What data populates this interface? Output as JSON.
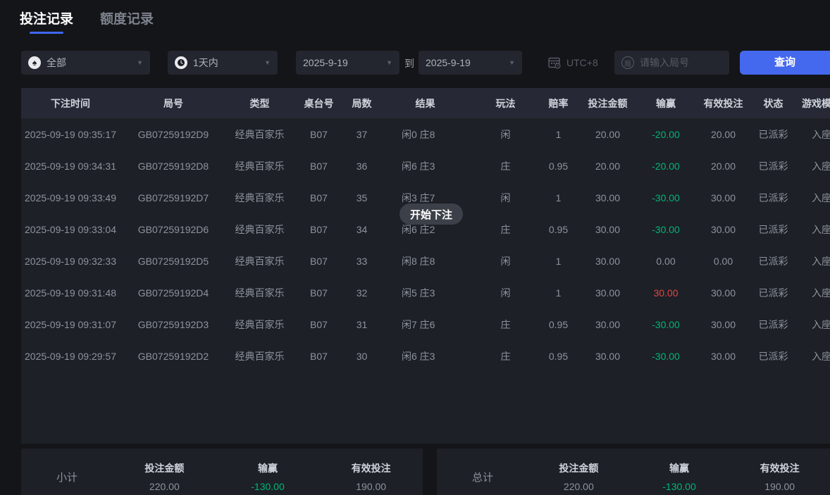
{
  "tabs": [
    {
      "label": "投注记录",
      "active": true
    },
    {
      "label": "额度记录",
      "active": false
    }
  ],
  "filters": {
    "game_type": {
      "value": "全部"
    },
    "time_range": {
      "value": "1天内"
    },
    "date_from": "2025-9-19",
    "to_label": "到",
    "date_to": "2025-9-19",
    "timezone": "UTC+8",
    "round_placeholder": "请输入局号",
    "query_button": "查询"
  },
  "table": {
    "headers": [
      "下注时间",
      "局号",
      "类型",
      "桌台号",
      "局数",
      "结果",
      "玩法",
      "赔率",
      "投注金额",
      "输赢",
      "有效投注",
      "状态",
      "游戏模式"
    ],
    "rows": [
      {
        "time": "2025-09-19 09:35:17",
        "round_id": "GB07259192D9",
        "type": "经典百家乐",
        "table_no": "B07",
        "round": "37",
        "result": "闲0 庄8",
        "play": "闲",
        "odds": "1",
        "bet": "20.00",
        "win_loss": "-20.00",
        "valid_bet": "20.00",
        "status": "已派彩",
        "mode": "入座"
      },
      {
        "time": "2025-09-19 09:34:31",
        "round_id": "GB07259192D8",
        "type": "经典百家乐",
        "table_no": "B07",
        "round": "36",
        "result": "闲6 庄3",
        "play": "庄",
        "odds": "0.95",
        "bet": "20.00",
        "win_loss": "-20.00",
        "valid_bet": "20.00",
        "status": "已派彩",
        "mode": "入座"
      },
      {
        "time": "2025-09-19 09:33:49",
        "round_id": "GB07259192D7",
        "type": "经典百家乐",
        "table_no": "B07",
        "round": "35",
        "result": "闲3 庄7",
        "play": "闲",
        "odds": "1",
        "bet": "30.00",
        "win_loss": "-30.00",
        "valid_bet": "30.00",
        "status": "已派彩",
        "mode": "入座"
      },
      {
        "time": "2025-09-19 09:33:04",
        "round_id": "GB07259192D6",
        "type": "经典百家乐",
        "table_no": "B07",
        "round": "34",
        "result": "闲6 庄2",
        "play": "庄",
        "odds": "0.95",
        "bet": "30.00",
        "win_loss": "-30.00",
        "valid_bet": "30.00",
        "status": "已派彩",
        "mode": "入座"
      },
      {
        "time": "2025-09-19 09:32:33",
        "round_id": "GB07259192D5",
        "type": "经典百家乐",
        "table_no": "B07",
        "round": "33",
        "result": "闲8 庄8",
        "play": "闲",
        "odds": "1",
        "bet": "30.00",
        "win_loss": "0.00",
        "valid_bet": "0.00",
        "status": "已派彩",
        "mode": "入座"
      },
      {
        "time": "2025-09-19 09:31:48",
        "round_id": "GB07259192D4",
        "type": "经典百家乐",
        "table_no": "B07",
        "round": "32",
        "result": "闲5 庄3",
        "play": "闲",
        "odds": "1",
        "bet": "30.00",
        "win_loss": "30.00",
        "valid_bet": "30.00",
        "status": "已派彩",
        "mode": "入座"
      },
      {
        "time": "2025-09-19 09:31:07",
        "round_id": "GB07259192D3",
        "type": "经典百家乐",
        "table_no": "B07",
        "round": "31",
        "result": "闲7 庄6",
        "play": "庄",
        "odds": "0.95",
        "bet": "30.00",
        "win_loss": "-30.00",
        "valid_bet": "30.00",
        "status": "已派彩",
        "mode": "入座"
      },
      {
        "time": "2025-09-19 09:29:57",
        "round_id": "GB07259192D2",
        "type": "经典百家乐",
        "table_no": "B07",
        "round": "30",
        "result": "闲6 庄3",
        "play": "庄",
        "odds": "0.95",
        "bet": "30.00",
        "win_loss": "-30.00",
        "valid_bet": "30.00",
        "status": "已派彩",
        "mode": "入座"
      }
    ]
  },
  "toast": {
    "label": "开始下注"
  },
  "summary": {
    "subtotal": {
      "label": "小计",
      "bet_label": "投注金额",
      "bet": "220.00",
      "win_loss_label": "输赢",
      "win_loss": "-130.00",
      "valid_label": "有效投注",
      "valid": "190.00"
    },
    "total": {
      "label": "总计",
      "bet_label": "投注金额",
      "bet": "220.00",
      "win_loss_label": "输赢",
      "win_loss": "-130.00",
      "valid_label": "有效投注",
      "valid": "190.00"
    }
  },
  "colors": {
    "accent_blue": "#4468ee",
    "tab_underline": "#3e68f2",
    "win_red": "#e24444",
    "loss_green": "#00b578",
    "page_bg": "#141519",
    "panel_bg": "#1d2026",
    "header_bg": "#262935"
  }
}
